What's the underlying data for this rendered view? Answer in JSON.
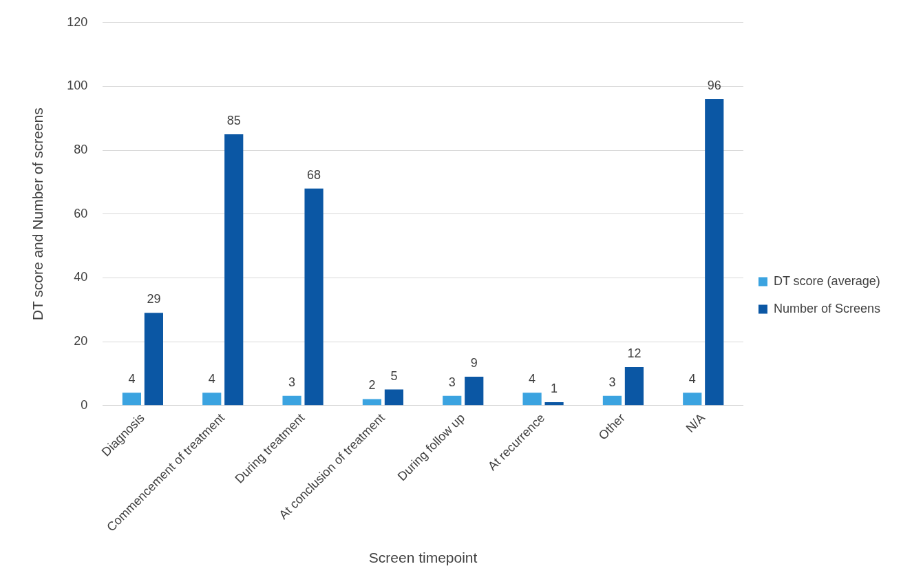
{
  "chart_data": {
    "type": "bar",
    "xlabel": "Screen timepoint",
    "ylabel": "DT score and Number of screens",
    "categories": [
      "Diagnosis",
      "Commencement of treatment",
      "During treatment",
      "At conclusion of treatment",
      "During follow up",
      "At recurrence",
      "Other",
      "N/A"
    ],
    "series": [
      {
        "name": "DT score (average)",
        "color": "#3ba3e0",
        "values": [
          4,
          4,
          3,
          2,
          3,
          4,
          3,
          4
        ]
      },
      {
        "name": "Number of Screens",
        "color": "#0b57a4",
        "values": [
          29,
          85,
          68,
          5,
          9,
          1,
          12,
          96
        ]
      }
    ],
    "ylim": [
      0,
      120
    ],
    "yticks": [
      0,
      20,
      40,
      60,
      80,
      100,
      120
    ],
    "grid": "y",
    "legend": "right",
    "data_labels": true
  }
}
